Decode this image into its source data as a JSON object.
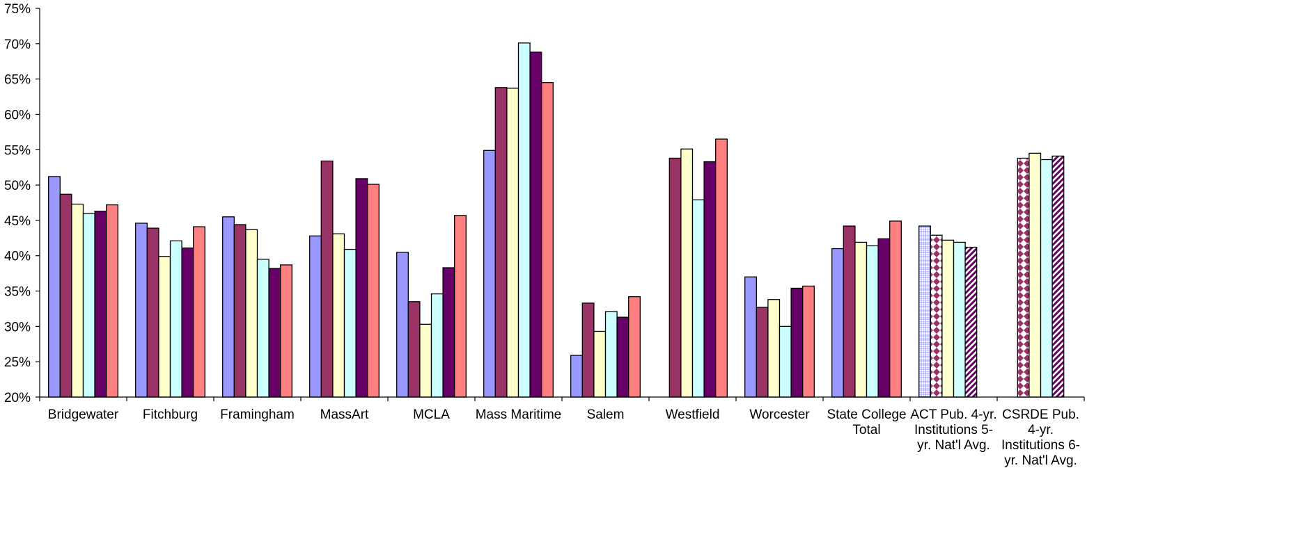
{
  "chart_data": {
    "type": "bar",
    "title": "",
    "xlabel": "",
    "ylabel": "",
    "ylim": [
      0.2,
      0.75
    ],
    "yticks": [
      "20%",
      "25%",
      "30%",
      "35%",
      "40%",
      "45%",
      "50%",
      "55%",
      "60%",
      "65%",
      "70%",
      "75%"
    ],
    "grid": false,
    "legend": "none",
    "categories": [
      [
        "Bridgewater"
      ],
      [
        "Fitchburg"
      ],
      [
        "Framingham"
      ],
      [
        "MassArt"
      ],
      [
        "MCLA"
      ],
      [
        "Mass Maritime"
      ],
      [
        "Salem"
      ],
      [
        "Westfield"
      ],
      [
        "Worcester"
      ],
      [
        "State College",
        "Total"
      ],
      [
        "ACT Pub. 4-yr.",
        "Institutions 5-",
        "yr. Nat'l Avg."
      ],
      [
        "CSRDE Pub.",
        "4-yr.",
        "Institutions 6-",
        "yr. Nat'l Avg."
      ]
    ],
    "series": [
      {
        "color": "#9999ff",
        "pattern": "grid",
        "values": [
          0.512,
          0.446,
          0.455,
          0.428,
          0.405,
          0.549,
          0.259,
          null,
          0.37,
          0.41,
          0.442,
          null
        ]
      },
      {
        "color": "#993366",
        "pattern": "diamonds",
        "values": [
          0.487,
          0.439,
          0.444,
          0.534,
          0.335,
          0.638,
          0.333,
          0.538,
          0.327,
          0.442,
          0.429,
          0.538
        ]
      },
      {
        "color": "#ffffcc",
        "pattern": "dots",
        "values": [
          0.473,
          0.399,
          0.437,
          0.431,
          0.303,
          0.637,
          0.293,
          0.551,
          0.338,
          0.419,
          0.422,
          0.545
        ]
      },
      {
        "color": "#ccffff",
        "pattern": "dots",
        "values": [
          0.46,
          0.421,
          0.395,
          0.409,
          0.346,
          0.701,
          0.321,
          0.479,
          0.3,
          0.414,
          0.419,
          0.536
        ]
      },
      {
        "color": "#660066",
        "pattern": "stripes",
        "values": [
          0.463,
          0.411,
          0.382,
          0.509,
          0.383,
          0.688,
          0.313,
          0.533,
          0.354,
          0.424,
          0.412,
          0.541
        ]
      },
      {
        "color": "#ff8080",
        "pattern": "none",
        "values": [
          0.472,
          0.441,
          0.387,
          0.501,
          0.457,
          0.645,
          0.342,
          0.565,
          0.357,
          0.449,
          null,
          null
        ]
      }
    ],
    "pattern_categories": [
      10,
      11
    ]
  }
}
